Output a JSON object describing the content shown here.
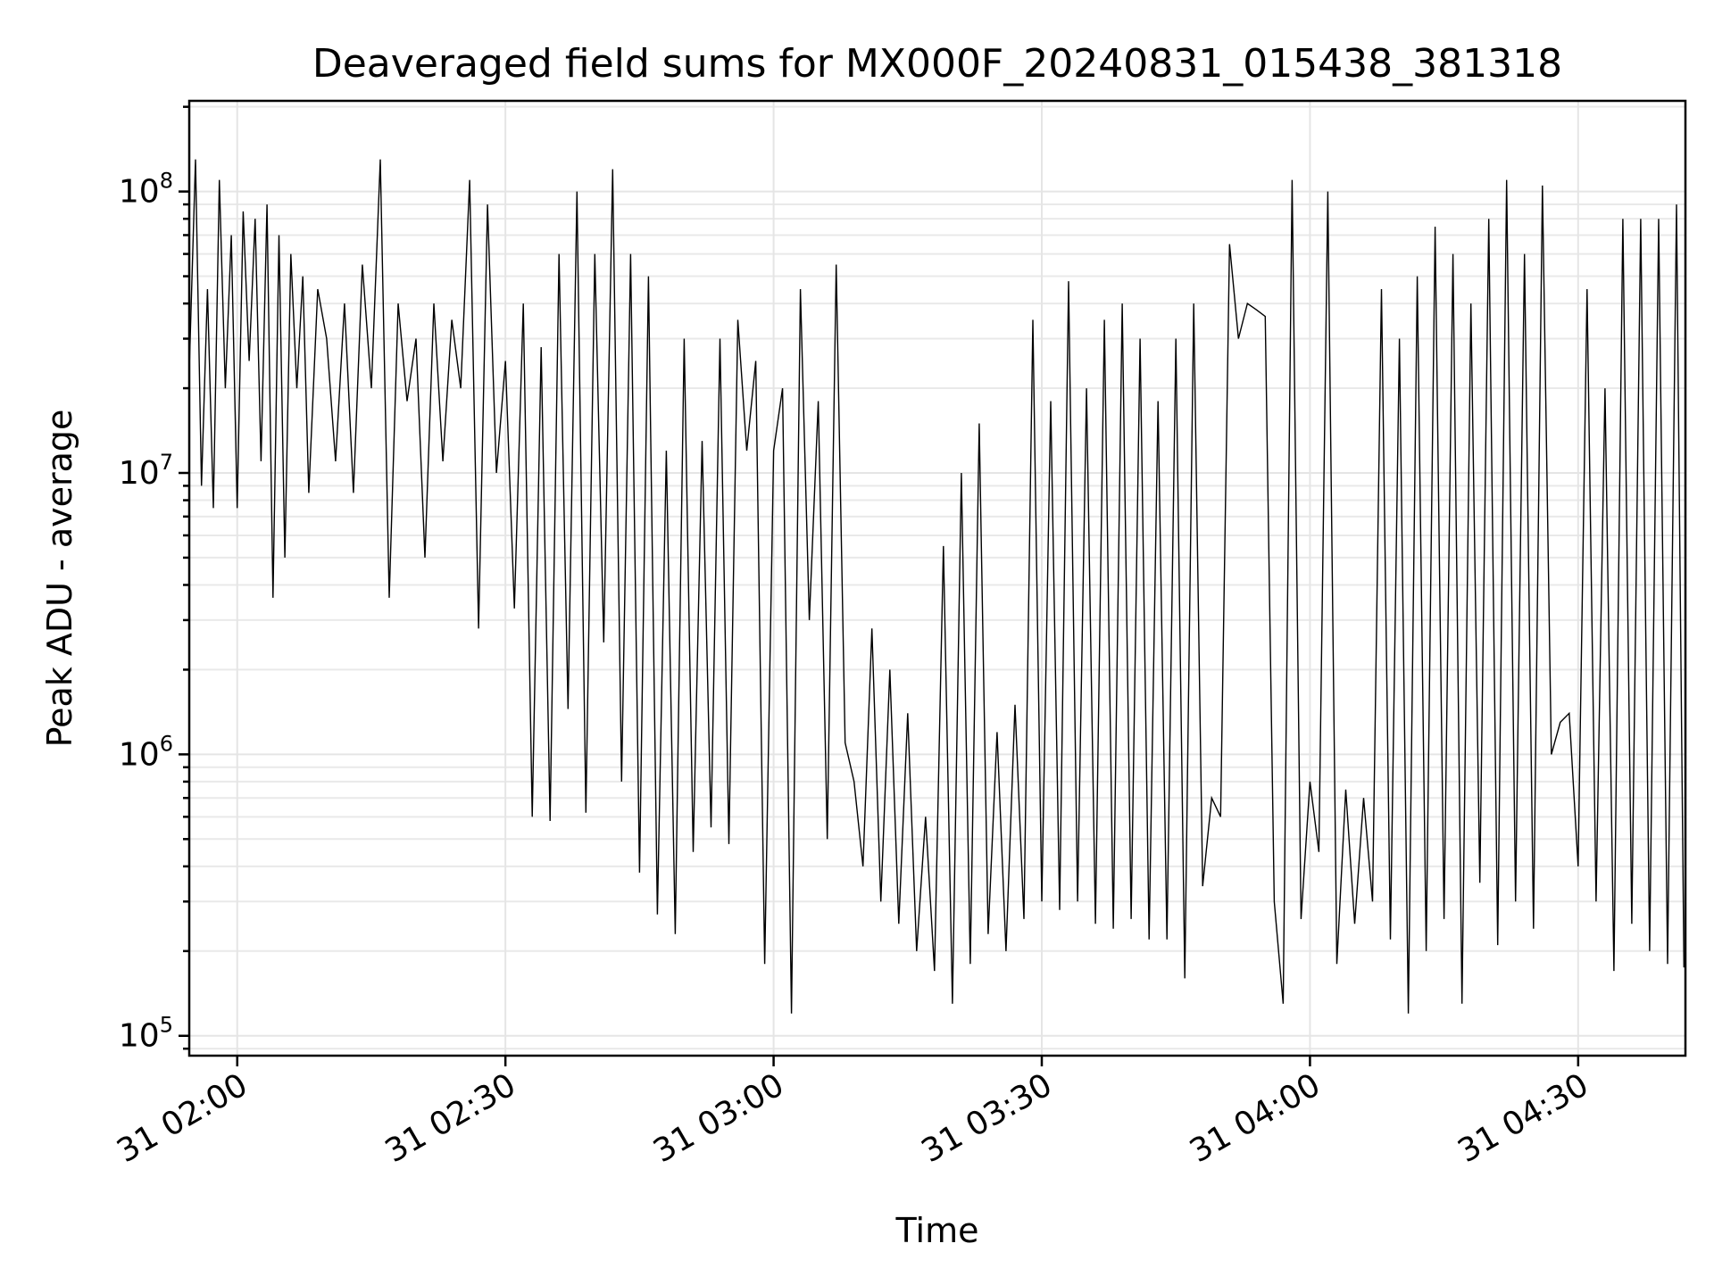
{
  "chart_data": {
    "type": "line",
    "title": "Deaveraged field sums for MX000F_20240831_015438_381318",
    "xlabel": "Time",
    "ylabel": "Peak ADU - average",
    "yscale": "log",
    "grid": true,
    "xlim": [
      "2024-08-31 01:54:38",
      "2024-08-31 04:42:00"
    ],
    "ylim": [
      85000,
      210000000
    ],
    "xticks": [
      {
        "value": "2024-08-31 02:00",
        "label": "31 02:00"
      },
      {
        "value": "2024-08-31 02:30",
        "label": "31 02:30"
      },
      {
        "value": "2024-08-31 03:00",
        "label": "31 03:00"
      },
      {
        "value": "2024-08-31 03:30",
        "label": "31 03:30"
      },
      {
        "value": "2024-08-31 04:00",
        "label": "31 04:00"
      },
      {
        "value": "2024-08-31 04:30",
        "label": "31 04:30"
      }
    ],
    "yticks": [
      {
        "value": 100000,
        "base": "10",
        "exp": "5"
      },
      {
        "value": 1000000,
        "base": "10",
        "exp": "6"
      },
      {
        "value": 10000000,
        "base": "10",
        "exp": "7"
      },
      {
        "value": 100000000,
        "base": "10",
        "exp": "8"
      }
    ],
    "series_color": "#000000",
    "series": [
      {
        "x": [
          "2024-08-31 01:54:40",
          "2024-08-31 01:55:20",
          "2024-08-31 01:56:00",
          "2024-08-31 01:56:40",
          "2024-08-31 01:57:20",
          "2024-08-31 01:58:00",
          "2024-08-31 01:58:40",
          "2024-08-31 01:59:20",
          "2024-08-31 02:00:00",
          "2024-08-31 02:00:40",
          "2024-08-31 02:01:20",
          "2024-08-31 02:02:00",
          "2024-08-31 02:02:40",
          "2024-08-31 02:03:20",
          "2024-08-31 02:04:00",
          "2024-08-31 02:04:40",
          "2024-08-31 02:05:20",
          "2024-08-31 02:06:00",
          "2024-08-31 02:06:40",
          "2024-08-31 02:07:20",
          "2024-08-31 02:08:00",
          "2024-08-31 02:09:00",
          "2024-08-31 02:10:00",
          "2024-08-31 02:11:00",
          "2024-08-31 02:12:00",
          "2024-08-31 02:13:00",
          "2024-08-31 02:14:00",
          "2024-08-31 02:15:00",
          "2024-08-31 02:16:00",
          "2024-08-31 02:17:00",
          "2024-08-31 02:18:00",
          "2024-08-31 02:19:00",
          "2024-08-31 02:20:00",
          "2024-08-31 02:21:00",
          "2024-08-31 02:22:00",
          "2024-08-31 02:23:00",
          "2024-08-31 02:24:00",
          "2024-08-31 02:25:00",
          "2024-08-31 02:26:00",
          "2024-08-31 02:27:00",
          "2024-08-31 02:28:00",
          "2024-08-31 02:29:00",
          "2024-08-31 02:30:00",
          "2024-08-31 02:31:00",
          "2024-08-31 02:32:00",
          "2024-08-31 02:33:00",
          "2024-08-31 02:34:00",
          "2024-08-31 02:35:00",
          "2024-08-31 02:36:00",
          "2024-08-31 02:37:00",
          "2024-08-31 02:38:00",
          "2024-08-31 02:39:00",
          "2024-08-31 02:40:00",
          "2024-08-31 02:41:00",
          "2024-08-31 02:42:00",
          "2024-08-31 02:43:00",
          "2024-08-31 02:44:00",
          "2024-08-31 02:45:00",
          "2024-08-31 02:46:00",
          "2024-08-31 02:47:00",
          "2024-08-31 02:48:00",
          "2024-08-31 02:49:00",
          "2024-08-31 02:50:00",
          "2024-08-31 02:51:00",
          "2024-08-31 02:52:00",
          "2024-08-31 02:53:00",
          "2024-08-31 02:54:00",
          "2024-08-31 02:55:00",
          "2024-08-31 02:56:00",
          "2024-08-31 02:57:00",
          "2024-08-31 02:58:00",
          "2024-08-31 02:59:00",
          "2024-08-31 03:00:00",
          "2024-08-31 03:01:00",
          "2024-08-31 03:02:00",
          "2024-08-31 03:03:00",
          "2024-08-31 03:04:00",
          "2024-08-31 03:05:00",
          "2024-08-31 03:06:00",
          "2024-08-31 03:07:00",
          "2024-08-31 03:08:00",
          "2024-08-31 03:09:00",
          "2024-08-31 03:10:00",
          "2024-08-31 03:11:00",
          "2024-08-31 03:12:00",
          "2024-08-31 03:13:00",
          "2024-08-31 03:14:00",
          "2024-08-31 03:15:00",
          "2024-08-31 03:16:00",
          "2024-08-31 03:17:00",
          "2024-08-31 03:18:00",
          "2024-08-31 03:19:00",
          "2024-08-31 03:20:00",
          "2024-08-31 03:21:00",
          "2024-08-31 03:22:00",
          "2024-08-31 03:23:00",
          "2024-08-31 03:24:00",
          "2024-08-31 03:25:00",
          "2024-08-31 03:26:00",
          "2024-08-31 03:27:00",
          "2024-08-31 03:28:00",
          "2024-08-31 03:29:00",
          "2024-08-31 03:30:00",
          "2024-08-31 03:31:00",
          "2024-08-31 03:32:00",
          "2024-08-31 03:33:00",
          "2024-08-31 03:34:00",
          "2024-08-31 03:35:00",
          "2024-08-31 03:36:00",
          "2024-08-31 03:37:00",
          "2024-08-31 03:38:00",
          "2024-08-31 03:39:00",
          "2024-08-31 03:40:00",
          "2024-08-31 03:41:00",
          "2024-08-31 03:42:00",
          "2024-08-31 03:43:00",
          "2024-08-31 03:44:00",
          "2024-08-31 03:45:00",
          "2024-08-31 03:46:00",
          "2024-08-31 03:47:00",
          "2024-08-31 03:48:00",
          "2024-08-31 03:49:00",
          "2024-08-31 03:50:00",
          "2024-08-31 03:51:00",
          "2024-08-31 03:52:00",
          "2024-08-31 03:53:00",
          "2024-08-31 03:54:00",
          "2024-08-31 03:55:00",
          "2024-08-31 03:56:00",
          "2024-08-31 03:57:00",
          "2024-08-31 03:58:00",
          "2024-08-31 03:59:00",
          "2024-08-31 04:00:00",
          "2024-08-31 04:01:00",
          "2024-08-31 04:02:00",
          "2024-08-31 04:03:00",
          "2024-08-31 04:04:00",
          "2024-08-31 04:05:00",
          "2024-08-31 04:06:00",
          "2024-08-31 04:07:00",
          "2024-08-31 04:08:00",
          "2024-08-31 04:09:00",
          "2024-08-31 04:10:00",
          "2024-08-31 04:11:00",
          "2024-08-31 04:12:00",
          "2024-08-31 04:13:00",
          "2024-08-31 04:14:00",
          "2024-08-31 04:15:00",
          "2024-08-31 04:16:00",
          "2024-08-31 04:17:00",
          "2024-08-31 04:18:00",
          "2024-08-31 04:19:00",
          "2024-08-31 04:20:00",
          "2024-08-31 04:21:00",
          "2024-08-31 04:22:00",
          "2024-08-31 04:23:00",
          "2024-08-31 04:24:00",
          "2024-08-31 04:25:00",
          "2024-08-31 04:26:00",
          "2024-08-31 04:27:00",
          "2024-08-31 04:28:00",
          "2024-08-31 04:29:00",
          "2024-08-31 04:30:00",
          "2024-08-31 04:31:00",
          "2024-08-31 04:32:00",
          "2024-08-31 04:33:00",
          "2024-08-31 04:34:00",
          "2024-08-31 04:35:00",
          "2024-08-31 04:36:00",
          "2024-08-31 04:37:00",
          "2024-08-31 04:38:00",
          "2024-08-31 04:39:00",
          "2024-08-31 04:40:00",
          "2024-08-31 04:41:00",
          "2024-08-31 04:41:50"
        ],
        "y": [
          25000000,
          130000000,
          9000000,
          45000000,
          7500000,
          110000000,
          20000000,
          70000000,
          7500000,
          85000000,
          25000000,
          80000000,
          11000000,
          90000000,
          3600000,
          70000000,
          5000000,
          60000000,
          20000000,
          50000000,
          8500000,
          45000000,
          30000000,
          11000000,
          40000000,
          8500000,
          55000000,
          20000000,
          130000000,
          3600000,
          40000000,
          18000000,
          30000000,
          5000000,
          40000000,
          11000000,
          35000000,
          20000000,
          110000000,
          2800000,
          90000000,
          10000000,
          25000000,
          3300000,
          40000000,
          600000,
          28000000,
          580000,
          60000000,
          1450000,
          100000000,
          620000,
          60000000,
          2500000,
          120000000,
          800000,
          60000000,
          380000,
          50000000,
          270000,
          12000000,
          230000,
          30000000,
          450000,
          13000000,
          550000,
          30000000,
          480000,
          35000000,
          12000000,
          25000000,
          180000,
          12000000,
          20000000,
          120000,
          45000000,
          3000000,
          18000000,
          500000,
          55000000,
          1100000,
          800000,
          400000,
          2800000,
          300000,
          2000000,
          250000,
          1400000,
          200000,
          600000,
          170000,
          5500000,
          130000,
          10000000,
          180000,
          15000000,
          230000,
          1200000,
          200000,
          1500000,
          260000,
          35000000,
          300000,
          18000000,
          280000,
          48000000,
          300000,
          20000000,
          250000,
          35000000,
          240000,
          40000000,
          260000,
          30000000,
          220000,
          18000000,
          220000,
          30000000,
          160000,
          40000000,
          340000,
          700000,
          600000,
          65000000,
          30000000,
          40000000,
          38000000,
          36000000,
          300000,
          130000,
          110000000,
          260000,
          800000,
          450000,
          100000000,
          180000,
          750000,
          250000,
          700000,
          300000,
          45000000,
          220000,
          30000000,
          120000,
          50000000,
          200000,
          75000000,
          260000,
          60000000,
          130000,
          40000000,
          350000,
          80000000,
          210000,
          110000000,
          300000,
          60000000,
          240000,
          105000000,
          1000000,
          1300000,
          1400000,
          400000,
          45000000,
          300000,
          20000000,
          170000,
          80000000,
          250000,
          80000000,
          200000,
          80000000,
          180000,
          90000000,
          175000
        ]
      }
    ]
  }
}
